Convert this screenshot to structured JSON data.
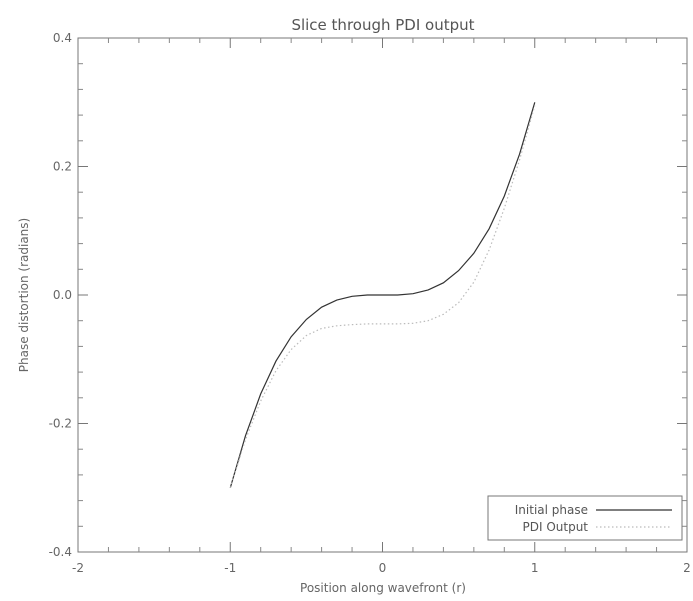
{
  "chart_data": {
    "type": "line",
    "title": "Slice through PDI output",
    "xlabel": "Position along wavefront (r)",
    "ylabel": "Phase distortion (radians)",
    "xlim": [
      -2,
      2
    ],
    "ylim": [
      -0.4,
      0.4
    ],
    "x_ticks": [
      -2,
      -1,
      0,
      1,
      2
    ],
    "x_tick_labels": [
      "-2",
      "-1",
      "0",
      "1",
      "2"
    ],
    "y_ticks": [
      -0.4,
      -0.2,
      0.0,
      0.2,
      0.4
    ],
    "y_tick_labels": [
      "-0.4",
      "-0.2",
      "0.0",
      "0.2",
      "0.4"
    ],
    "grid": false,
    "legend_position": "bottom-right",
    "series": [
      {
        "name": "Initial phase",
        "style": "solid",
        "color": "#333333",
        "x": [
          -1.0,
          -0.9,
          -0.8,
          -0.7,
          -0.6,
          -0.5,
          -0.4,
          -0.3,
          -0.2,
          -0.1,
          0.0,
          0.1,
          0.2,
          0.3,
          0.4,
          0.5,
          0.6,
          0.7,
          0.8,
          0.9,
          1.0
        ],
        "y": [
          -0.3,
          -0.219,
          -0.154,
          -0.103,
          -0.065,
          -0.038,
          -0.019,
          -0.008,
          -0.002,
          0.0,
          0.0,
          0.0,
          0.002,
          0.008,
          0.019,
          0.038,
          0.065,
          0.103,
          0.154,
          0.219,
          0.3
        ]
      },
      {
        "name": "PDI Output",
        "style": "dotted",
        "color": "#bbbbbb",
        "x": [
          -1.0,
          -0.9,
          -0.8,
          -0.7,
          -0.6,
          -0.5,
          -0.4,
          -0.3,
          -0.2,
          -0.1,
          0.0,
          0.1,
          0.2,
          0.3,
          0.4,
          0.5,
          0.6,
          0.7,
          0.8,
          0.9,
          1.0
        ],
        "y": [
          -0.3,
          -0.225,
          -0.165,
          -0.118,
          -0.085,
          -0.063,
          -0.052,
          -0.048,
          -0.046,
          -0.045,
          -0.045,
          -0.045,
          -0.044,
          -0.04,
          -0.03,
          -0.012,
          0.02,
          0.07,
          0.135,
          0.21,
          0.295
        ]
      }
    ]
  }
}
